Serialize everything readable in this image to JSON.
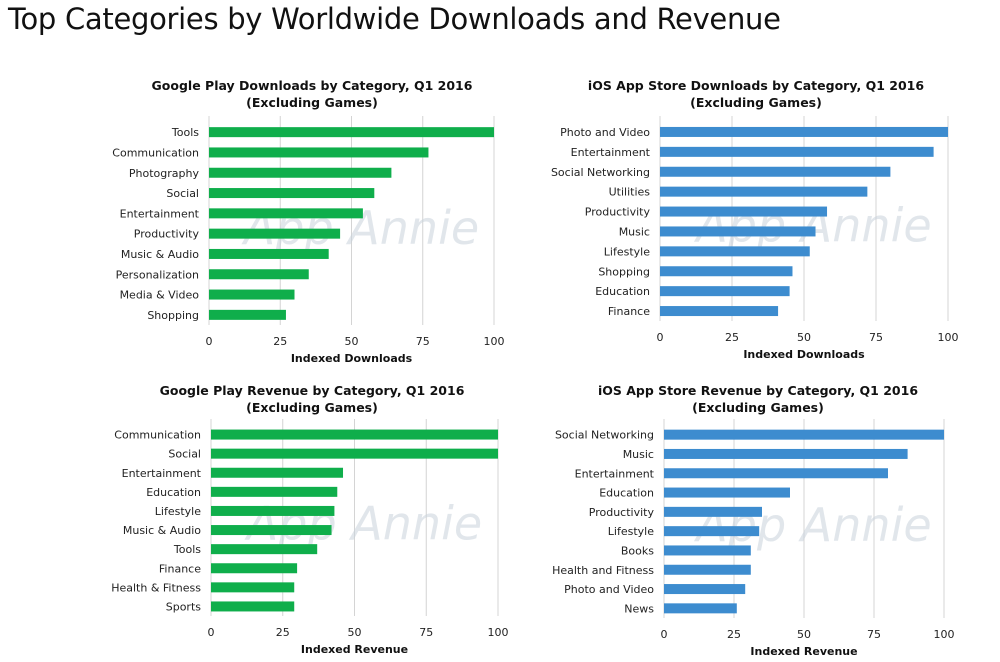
{
  "page": {
    "title": "Top Categories by Worldwide Downloads and Revenue"
  },
  "watermark": "App Annie",
  "colors": {
    "google_play": "#0fae4b",
    "ios": "#3d8ccf",
    "grid": "#d4d4d4"
  },
  "chart_data": [
    {
      "type": "bar",
      "orientation": "horizontal",
      "title": "Google Play Downloads by Category, Q1 2016",
      "subtitle": "(Excluding Games)",
      "xlabel": "Indexed Downloads",
      "ylabel": "",
      "xlim": [
        0,
        100
      ],
      "xticks": [
        "0",
        "25",
        "50",
        "75",
        "100"
      ],
      "grid": true,
      "categories": [
        "Tools",
        "Communication",
        "Photography",
        "Social",
        "Entertainment",
        "Productivity",
        "Music & Audio",
        "Personalization",
        "Media & Video",
        "Shopping"
      ],
      "values": [
        100,
        77,
        64,
        58,
        54,
        46,
        42,
        35,
        30,
        27
      ],
      "color": "#0fae4b"
    },
    {
      "type": "bar",
      "orientation": "horizontal",
      "title": "iOS App Store Downloads by Category, Q1 2016",
      "subtitle": "(Excluding Games)",
      "xlabel": "Indexed Downloads",
      "ylabel": "",
      "xlim": [
        0,
        100
      ],
      "xticks": [
        "0",
        "25",
        "50",
        "75",
        "100"
      ],
      "grid": true,
      "categories": [
        "Photo and Video",
        "Entertainment",
        "Social Networking",
        "Utilities",
        "Productivity",
        "Music",
        "Lifestyle",
        "Shopping",
        "Education",
        "Finance"
      ],
      "values": [
        100,
        95,
        80,
        72,
        58,
        54,
        52,
        46,
        45,
        41
      ],
      "color": "#3d8ccf"
    },
    {
      "type": "bar",
      "orientation": "horizontal",
      "title": "Google Play Revenue by Category, Q1 2016",
      "subtitle": "(Excluding Games)",
      "xlabel": "Indexed Revenue",
      "ylabel": "",
      "xlim": [
        0,
        100
      ],
      "xticks": [
        "0",
        "25",
        "50",
        "75",
        "100"
      ],
      "grid": true,
      "categories": [
        "Communication",
        "Social",
        "Entertainment",
        "Education",
        "Lifestyle",
        "Music & Audio",
        "Tools",
        "Finance",
        "Health & Fitness",
        "Sports"
      ],
      "values": [
        100,
        100,
        46,
        44,
        43,
        42,
        37,
        30,
        29,
        29
      ],
      "color": "#0fae4b"
    },
    {
      "type": "bar",
      "orientation": "horizontal",
      "title": "iOS App Store Revenue by Category, Q1 2016",
      "subtitle": "(Excluding Games)",
      "xlabel": "Indexed Revenue",
      "ylabel": "",
      "xlim": [
        0,
        100
      ],
      "xticks": [
        "0",
        "25",
        "50",
        "75",
        "100"
      ],
      "grid": true,
      "categories": [
        "Social Networking",
        "Music",
        "Entertainment",
        "Education",
        "Productivity",
        "Lifestyle",
        "Books",
        "Health and Fitness",
        "Photo and Video",
        "News"
      ],
      "values": [
        100,
        87,
        80,
        45,
        35,
        34,
        31,
        31,
        29,
        26
      ],
      "color": "#3d8ccf"
    }
  ]
}
